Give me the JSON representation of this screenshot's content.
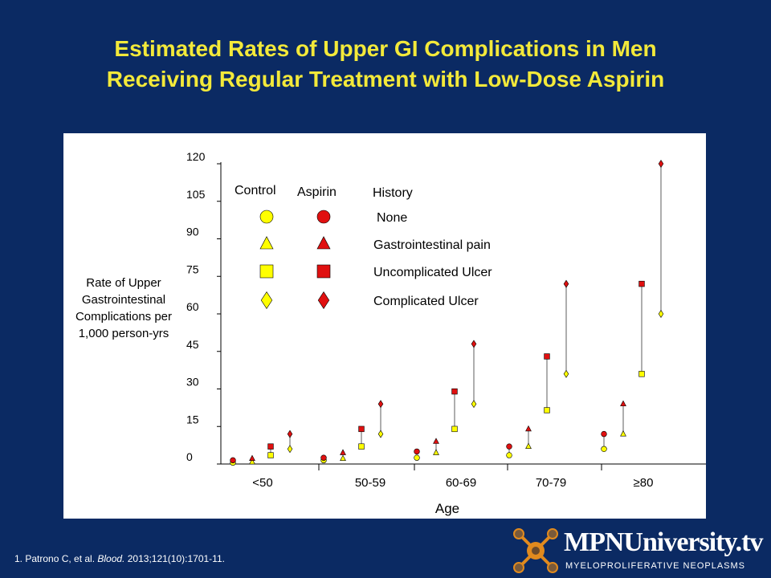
{
  "slide": {
    "title_line1": "Estimated Rates of Upper GI Complications in Men",
    "title_line2": "Receiving Regular Treatment with Low-Dose Aspirin",
    "citation_prefix": "1. Patrono  C, et al. ",
    "citation_journal": "Blood.",
    "citation_suffix": " 2013;121(10):1701-11.",
    "logo_text": "MPNUniversity.tv",
    "logo_subtext": "MYELOPROLIFERATIVE NEOPLASMS"
  },
  "colors": {
    "background": "#0b2a63",
    "title": "#f3e93a",
    "control_fill": "#ffff00",
    "aspirin_fill": "#e01010",
    "logo_accent": "#e08a1e"
  },
  "chart_data": {
    "type": "scatter",
    "ylabel_lines": [
      "Rate of Upper",
      "Gastrointestinal",
      "Complications per",
      "1,000 person-yrs"
    ],
    "xlabel": "Age",
    "ylim": [
      0,
      120
    ],
    "yticks": [
      0,
      15,
      30,
      45,
      60,
      75,
      90,
      105,
      120
    ],
    "grid": false,
    "legend": {
      "placement": "top-left",
      "header_control": "Control",
      "header_aspirin": "Aspirin",
      "header_history": "History",
      "entries": [
        {
          "marker": "circle",
          "label": "None"
        },
        {
          "marker": "triangle",
          "label": "Gastrointestinal pain"
        },
        {
          "marker": "square",
          "label": "Uncomplicated Ulcer"
        },
        {
          "marker": "diamond",
          "label": "Complicated Ulcer"
        }
      ]
    },
    "categories": [
      "<50",
      "50-59",
      "60-69",
      "70-79",
      "≥80"
    ],
    "histories": [
      "None",
      "Gastrointestinal pain",
      "Uncomplicated Ulcer",
      "Complicated Ulcer"
    ],
    "series": [
      {
        "name": "Control",
        "values": [
          [
            0.5,
            0.8,
            3.5,
            6
          ],
          [
            1.5,
            2.2,
            7,
            12
          ],
          [
            2.5,
            4.5,
            14,
            24
          ],
          [
            3.5,
            7,
            21.5,
            36
          ],
          [
            6,
            12,
            36,
            60
          ]
        ]
      },
      {
        "name": "Aspirin",
        "values": [
          [
            1.5,
            2.2,
            7,
            12
          ],
          [
            2.5,
            4.5,
            14,
            24
          ],
          [
            5,
            9,
            29,
            48
          ],
          [
            7,
            14,
            43,
            72
          ],
          [
            12,
            24,
            72,
            120
          ]
        ]
      }
    ]
  }
}
